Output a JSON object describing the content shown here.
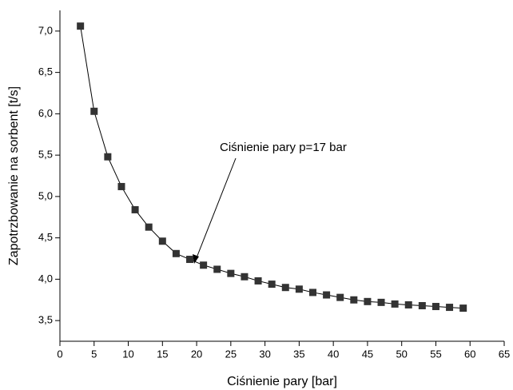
{
  "chart_data": {
    "type": "line",
    "x_label": "Ciśnienie pary [bar]",
    "y_label": "Zapotrzbowanie na sorbent [t/s]",
    "annotation": "Ciśnienie pary p=17 bar",
    "x": [
      3,
      5,
      7,
      9,
      11,
      13,
      15,
      17,
      19,
      21,
      23,
      25,
      27,
      29,
      31,
      33,
      35,
      37,
      39,
      41,
      43,
      45,
      47,
      49,
      51,
      53,
      55,
      57,
      59
    ],
    "series": [
      {
        "color": "#333333",
        "values": [
          7.06,
          6.03,
          5.48,
          5.12,
          4.84,
          4.63,
          4.46,
          4.31,
          4.24,
          4.17,
          4.12,
          4.07,
          4.03,
          3.98,
          3.94,
          3.9,
          3.88,
          3.84,
          3.81,
          3.78,
          3.75,
          3.73,
          3.72,
          3.7,
          3.69,
          3.68,
          3.67,
          3.66,
          3.65
        ]
      }
    ],
    "xlim": [
      0,
      65
    ],
    "xticks": [
      0,
      5,
      10,
      15,
      20,
      25,
      30,
      35,
      40,
      45,
      50,
      55,
      60,
      65
    ],
    "ylim": [
      3.25,
      7.25
    ],
    "yticks": [
      {
        "value": 3.5,
        "label": "3,5"
      },
      {
        "value": 4.0,
        "label": "4,0"
      },
      {
        "value": 4.5,
        "label": "4,5"
      },
      {
        "value": 5.0,
        "label": "5,0"
      },
      {
        "value": 5.5,
        "label": "5,5"
      },
      {
        "value": 6.0,
        "label": "6,0"
      },
      {
        "value": 6.5,
        "label": "6,5"
      },
      {
        "value": 7.0,
        "label": "7,0"
      }
    ],
    "grid": false
  }
}
